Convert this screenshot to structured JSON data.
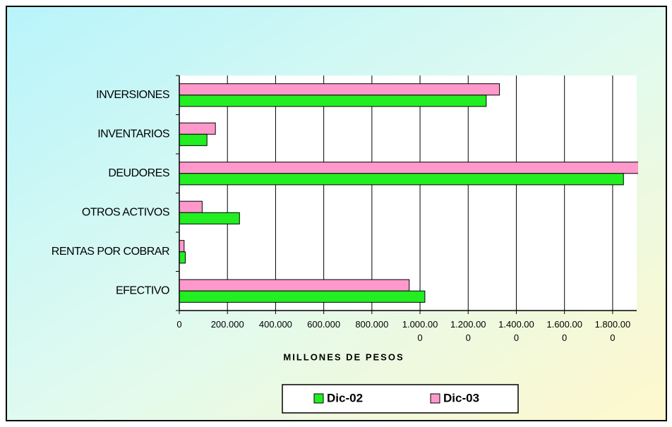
{
  "chart_data": {
    "type": "hbar",
    "categories": [
      "INVERSIONES",
      "INVENTARIOS",
      "DEUDORES",
      "OTROS ACTIVOS",
      "RENTAS POR COBRAR",
      "EFECTIVO"
    ],
    "series": [
      {
        "name": "Dic-02",
        "color": "#22ee22",
        "values": [
          1275000,
          115000,
          1845000,
          250000,
          25000,
          1020000
        ]
      },
      {
        "name": "Dic-03",
        "color": "#ff99cc",
        "values": [
          1330000,
          150000,
          1950000,
          95000,
          20000,
          955000
        ]
      }
    ],
    "x_label": "MILLONES DE PESOS",
    "xlim": [
      0,
      1900000
    ],
    "xticks": [
      0,
      {
        "value": 200000,
        "label": "200.000"
      },
      {
        "value": 400000,
        "label": "400.000"
      },
      {
        "value": 600000,
        "label": "600.000"
      },
      {
        "value": 800000,
        "label": "800.000"
      },
      {
        "value": 1000000,
        "label": "1.000.000"
      },
      {
        "value": 1200000,
        "label": "1.200.000"
      },
      {
        "value": 1400000,
        "label": "1.400.000"
      },
      {
        "value": 1600000,
        "label": "1.600.000"
      },
      {
        "value": 1800000,
        "label": "1.800.000"
      }
    ],
    "grid": true,
    "legend": "bottom"
  }
}
